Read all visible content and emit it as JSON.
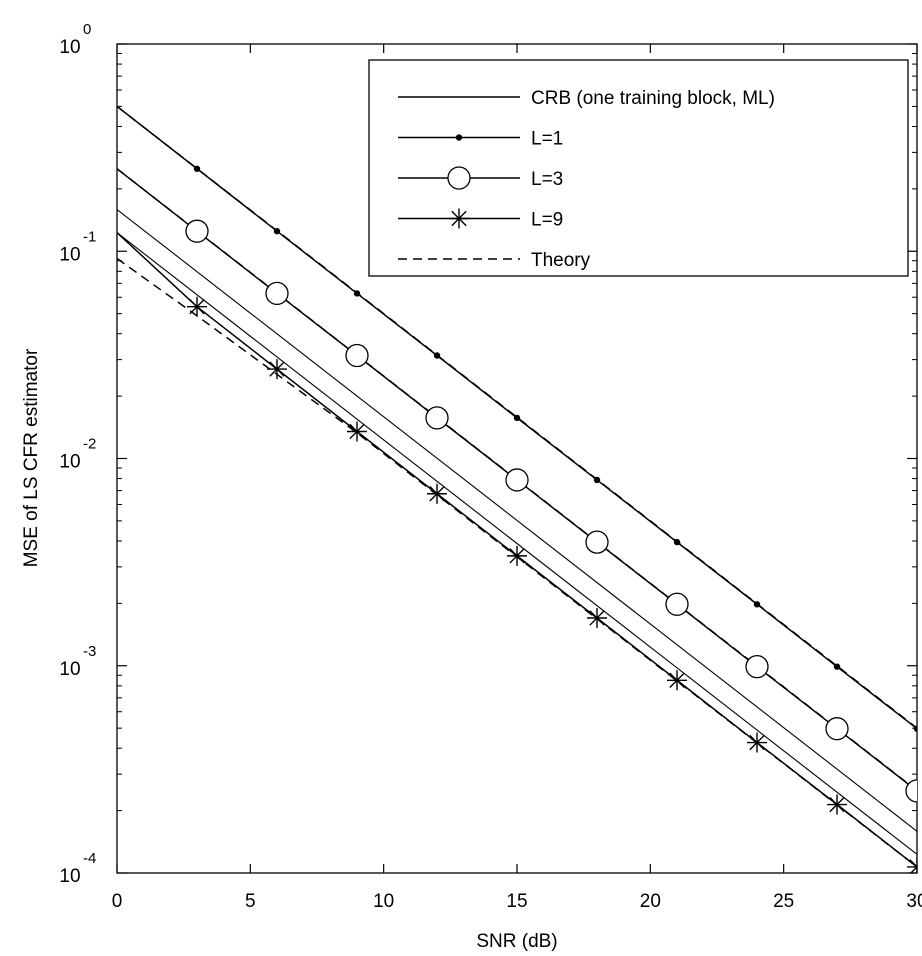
{
  "chart_data": {
    "type": "line",
    "xlabel": "SNR (dB)",
    "ylabel": "MSE of LS CFR estimator",
    "xlim": [
      0,
      30
    ],
    "ylim": [
      0.0001,
      1
    ],
    "yscale": "log",
    "x_ticks": [
      0,
      5,
      10,
      15,
      20,
      25,
      30
    ],
    "y_ticks": [
      {
        "base": "10",
        "exp": "0",
        "value": 1
      },
      {
        "base": "10",
        "exp": "-1",
        "value": 0.1
      },
      {
        "base": "10",
        "exp": "-2",
        "value": 0.01
      },
      {
        "base": "10",
        "exp": "-3",
        "value": 0.001
      },
      {
        "base": "10",
        "exp": "-4",
        "value": 0.0001
      }
    ],
    "grid": false,
    "legend_position": "top-right",
    "series": [
      {
        "name": "CRB (one training block, ML)",
        "marker": "none",
        "style": "solid",
        "lines": [
          {
            "x": [
              0,
              30
            ],
            "y": [
              0.159,
              0.000159
            ]
          },
          {
            "x": [
              0,
              30
            ],
            "y": [
              0.123,
              0.000123
            ]
          }
        ]
      },
      {
        "name": "L=1",
        "marker": "dot",
        "style": "solid",
        "x": [
          0,
          3,
          6,
          9,
          12,
          15,
          18,
          21,
          24,
          27,
          30
        ],
        "y": [
          0.5,
          0.25,
          0.125,
          0.0626,
          0.0314,
          0.0157,
          0.00788,
          0.00395,
          0.00198,
          0.00099,
          0.000497
        ]
      },
      {
        "name": "L=3",
        "marker": "circle",
        "style": "solid",
        "x": [
          0,
          3,
          6,
          9,
          12,
          15,
          18,
          21,
          24,
          27,
          30
        ],
        "y": [
          0.25,
          0.125,
          0.0626,
          0.0314,
          0.0157,
          0.00788,
          0.00395,
          0.00198,
          0.00099,
          0.000497,
          0.000249
        ]
      },
      {
        "name": "L=9",
        "marker": "star",
        "style": "solid",
        "x": [
          0,
          3,
          6,
          9,
          12,
          15,
          18,
          21,
          24,
          27,
          30
        ],
        "y": [
          0.123,
          0.054,
          0.027,
          0.0135,
          0.00676,
          0.00339,
          0.0017,
          0.000851,
          0.000426,
          0.000214,
          0.000107
        ]
      },
      {
        "name": "Theory",
        "marker": "none",
        "style": "dashed",
        "lines": [
          {
            "x": [
              0,
              30
            ],
            "y": [
              0.5,
              0.0005
            ]
          },
          {
            "x": [
              0,
              30
            ],
            "y": [
              0.25,
              0.00025
            ]
          },
          {
            "x": [
              0,
              3,
              9,
              30
            ],
            "y": [
              0.0923,
              0.0488,
              0.0133,
              0.000107
            ]
          }
        ]
      }
    ]
  }
}
